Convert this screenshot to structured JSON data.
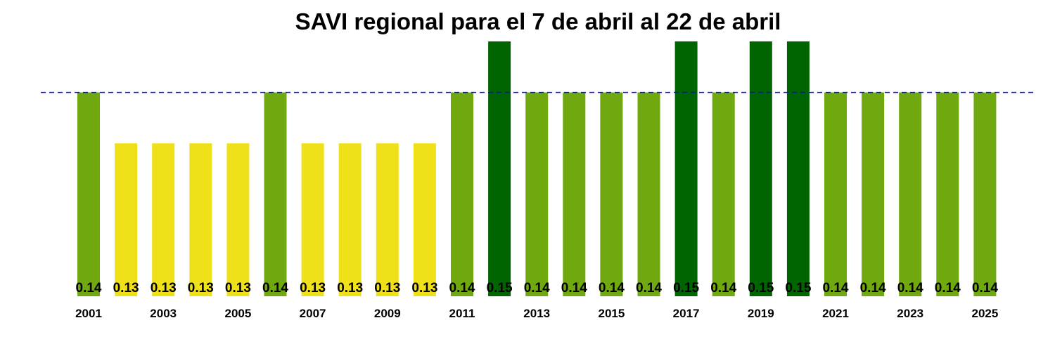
{
  "chart_data": {
    "type": "bar",
    "title": "SAVI regional para el 7 de abril al 22 de abril",
    "xlabel": "",
    "ylabel": "",
    "categories": [
      "2001",
      "2002",
      "2003",
      "2004",
      "2005",
      "2006",
      "2007",
      "2008",
      "2009",
      "2010",
      "2011",
      "2012",
      "2013",
      "2014",
      "2015",
      "2016",
      "2017",
      "2018",
      "2019",
      "2020",
      "2021",
      "2022",
      "2023",
      "2024",
      "2025"
    ],
    "x_tick_labels": [
      "2001",
      "2003",
      "2005",
      "2007",
      "2009",
      "2011",
      "2013",
      "2015",
      "2017",
      "2019",
      "2021",
      "2023",
      "2025"
    ],
    "values": [
      0.14,
      0.13,
      0.13,
      0.13,
      0.13,
      0.14,
      0.13,
      0.13,
      0.13,
      0.13,
      0.14,
      0.15,
      0.14,
      0.14,
      0.14,
      0.14,
      0.15,
      0.14,
      0.15,
      0.15,
      0.14,
      0.14,
      0.14,
      0.14,
      0.14
    ],
    "labels": [
      "0.14",
      "0.13",
      "0.13",
      "0.13",
      "0.13",
      "0.14",
      "0.13",
      "0.13",
      "0.13",
      "0.13",
      "0.14",
      "0.15",
      "0.14",
      "0.14",
      "0.14",
      "0.14",
      "0.15",
      "0.14",
      "0.15",
      "0.15",
      "0.14",
      "0.14",
      "0.14",
      "0.14",
      "0.14"
    ],
    "reference_line": 0.14,
    "colors": {
      "0.13": "#f0e01a",
      "0.14": "#6fa80f",
      "0.15": "#006400",
      "reference_line": "#0000ff"
    },
    "grid": false,
    "legend": "none"
  }
}
